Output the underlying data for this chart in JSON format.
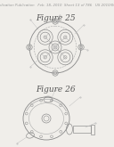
{
  "background_color": "#f0eeea",
  "header_text": "Patent Application Publication   Feb. 18, 2010  Sheet 13 of 786   US 2010/0031916 A1",
  "header_fontsize": 2.8,
  "header_color": "#999999",
  "fig25_label": "Figure 25",
  "fig26_label": "Figure 26",
  "label_fontsize": 6.5,
  "label_color": "#555555",
  "drawing_color": "#aaaaaa",
  "dark_color": "#888888",
  "line_color": "#bbbbbb"
}
